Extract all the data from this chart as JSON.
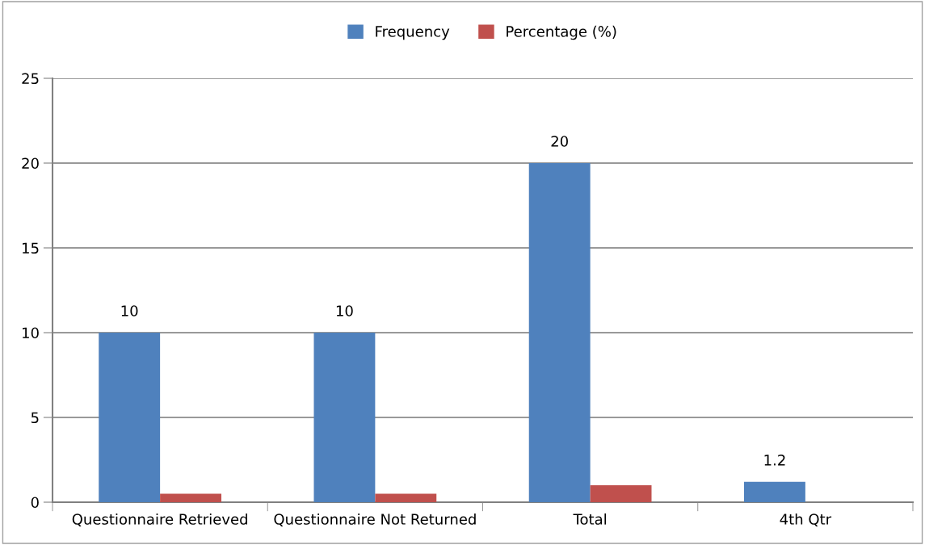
{
  "chart_data": {
    "type": "bar",
    "categories": [
      "Questionnaire Retrieved",
      "Questionnaire Not Returned",
      "Total",
      "4th Qtr"
    ],
    "series": [
      {
        "name": "Frequency",
        "color": "#4f81bd",
        "values": [
          10,
          10,
          20,
          1.2
        ],
        "value_labels": [
          "10",
          "10",
          "20",
          "1.2"
        ]
      },
      {
        "name": "Percentage (%)",
        "color": "#c0504d",
        "values": [
          0.5,
          0.5,
          1.0,
          null
        ]
      }
    ],
    "ylim": [
      0,
      25
    ],
    "yticks": [
      0,
      5,
      10,
      15,
      20,
      25
    ],
    "grid": "y",
    "legend": "top"
  }
}
